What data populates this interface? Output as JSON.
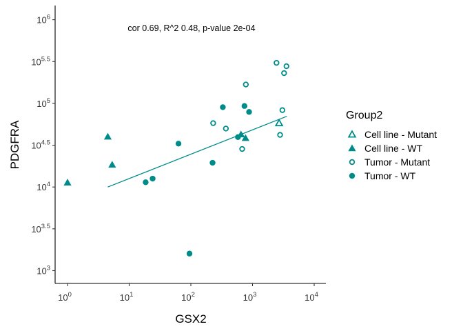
{
  "chart_data": {
    "type": "scatter",
    "title": "",
    "annotation": "cor 0.69, R^2 0.48, p-value 2e-04",
    "xlabel": "GSX2",
    "ylabel": "PDGFRA",
    "xscale": "log10",
    "yscale": "log10",
    "x_log_range": [
      -0.2,
      4.2
    ],
    "y_log_range": [
      2.9,
      6.1
    ],
    "x_ticks": [
      {
        "base": "10",
        "exp": "0"
      },
      {
        "base": "10",
        "exp": "1"
      },
      {
        "base": "10",
        "exp": "2"
      },
      {
        "base": "10",
        "exp": "3"
      },
      {
        "base": "10",
        "exp": "4"
      }
    ],
    "y_ticks": [
      {
        "base": "10",
        "exp": "3",
        "log": 3
      },
      {
        "base": "10",
        "exp": "3.5",
        "log": 3.5
      },
      {
        "base": "10",
        "exp": "4",
        "log": 4
      },
      {
        "base": "10",
        "exp": "4.5",
        "log": 4.5
      },
      {
        "base": "10",
        "exp": "5",
        "log": 5
      },
      {
        "base": "10",
        "exp": "5.5",
        "log": 5.5
      },
      {
        "base": "10",
        "exp": "6",
        "log": 6
      }
    ],
    "grid": false,
    "legend": {
      "title": "Group2",
      "placement": "right",
      "entries": [
        {
          "label": "Cell line - Mutant",
          "shape": "triangle",
          "filled": false
        },
        {
          "label": "Cell line - WT",
          "shape": "triangle",
          "filled": true
        },
        {
          "label": "Tumor - Mutant",
          "shape": "circle",
          "filled": false
        },
        {
          "label": "Tumor - WT",
          "shape": "circle",
          "filled": true
        }
      ]
    },
    "color": "#008B8B",
    "regression_line": {
      "x1": 4.5,
      "y1": 10000,
      "x2": 3600,
      "y2": 70000
    },
    "series": [
      {
        "name": "Cell line - Mutant",
        "points": [
          {
            "x": 2700,
            "y": 58000
          }
        ]
      },
      {
        "name": "Cell line - WT",
        "points": [
          {
            "x": 1.0,
            "y": 11300
          },
          {
            "x": 4.5,
            "y": 40000
          },
          {
            "x": 5.3,
            "y": 18500
          },
          {
            "x": 650,
            "y": 42500
          },
          {
            "x": 770,
            "y": 38500
          }
        ]
      },
      {
        "name": "Tumor - Mutant",
        "points": [
          {
            "x": 2450,
            "y": 305000
          },
          {
            "x": 3550,
            "y": 278000
          },
          {
            "x": 3250,
            "y": 230000
          },
          {
            "x": 780,
            "y": 168000
          },
          {
            "x": 3050,
            "y": 83000
          },
          {
            "x": 230,
            "y": 58000
          },
          {
            "x": 370,
            "y": 50000
          },
          {
            "x": 2800,
            "y": 42000
          },
          {
            "x": 680,
            "y": 28500
          }
        ]
      },
      {
        "name": "Tumor - WT",
        "points": [
          {
            "x": 330,
            "y": 90000
          },
          {
            "x": 740,
            "y": 93000
          },
          {
            "x": 880,
            "y": 79000
          },
          {
            "x": 580,
            "y": 39500
          },
          {
            "x": 63,
            "y": 33000
          },
          {
            "x": 225,
            "y": 19500
          },
          {
            "x": 24,
            "y": 12600
          },
          {
            "x": 18.5,
            "y": 11400
          },
          {
            "x": 95,
            "y": 1600
          }
        ]
      }
    ]
  }
}
